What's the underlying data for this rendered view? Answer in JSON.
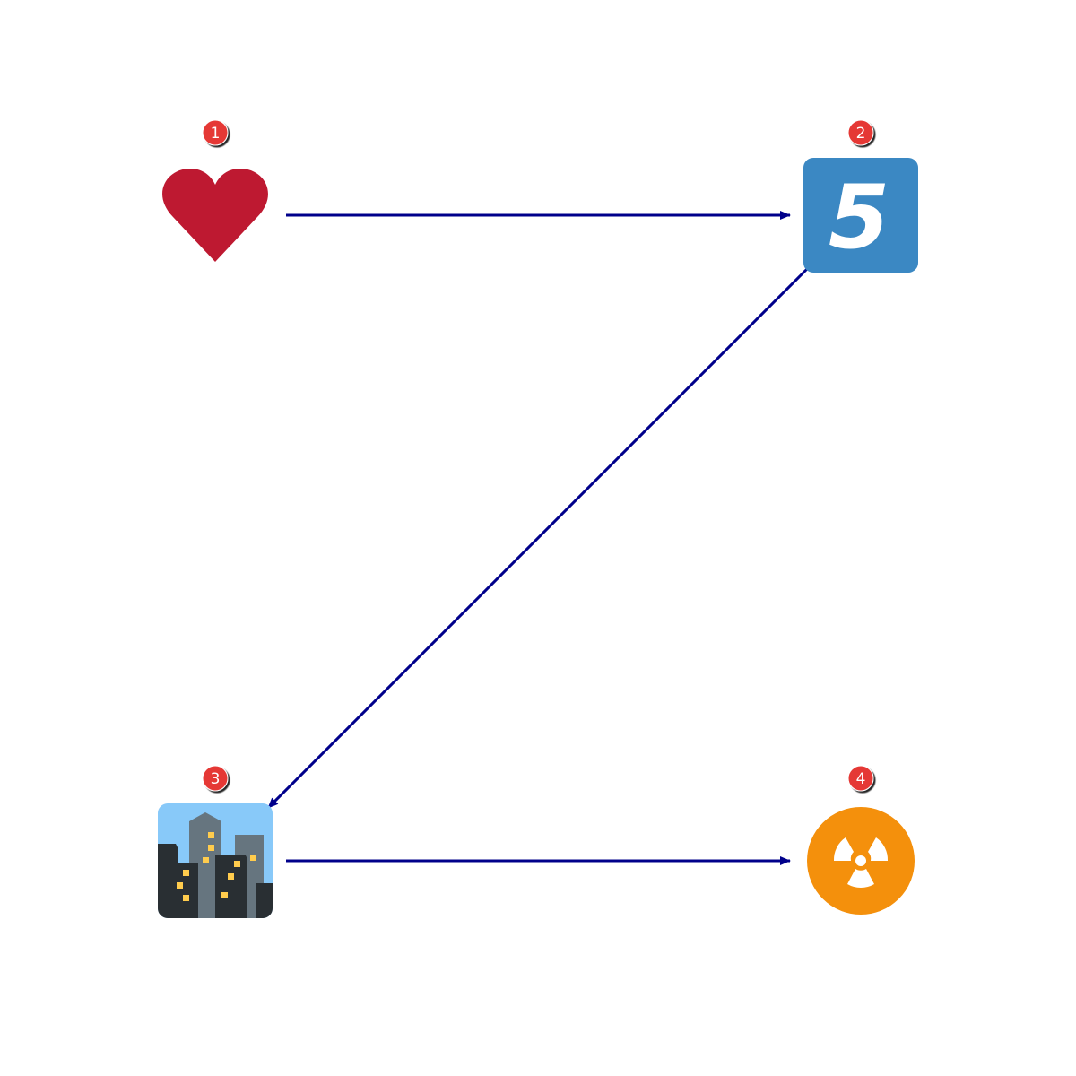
{
  "colors": {
    "background": "#ffffff",
    "arrow": "#00008b",
    "badge": "#e53935",
    "heart": "#be1931",
    "keycap": "#3b88c3",
    "city_sky": "#88c9f9",
    "building_dark": "#292f33",
    "building_gray": "#66757f",
    "window": "#ffcc4d",
    "radioactive": "#f4900c"
  },
  "nodes": [
    {
      "id": "heart",
      "badge": "1",
      "icon": "heart-icon"
    },
    {
      "id": "keycap-five",
      "badge": "2",
      "icon": "keycap-five-icon",
      "glyph": "5"
    },
    {
      "id": "cityscape",
      "badge": "3",
      "icon": "cityscape-icon"
    },
    {
      "id": "radioactive",
      "badge": "4",
      "icon": "radioactive-icon"
    }
  ],
  "edges": [
    {
      "from": "heart",
      "to": "keycap-five"
    },
    {
      "from": "keycap-five",
      "to": "cityscape"
    },
    {
      "from": "cityscape",
      "to": "radioactive"
    }
  ]
}
